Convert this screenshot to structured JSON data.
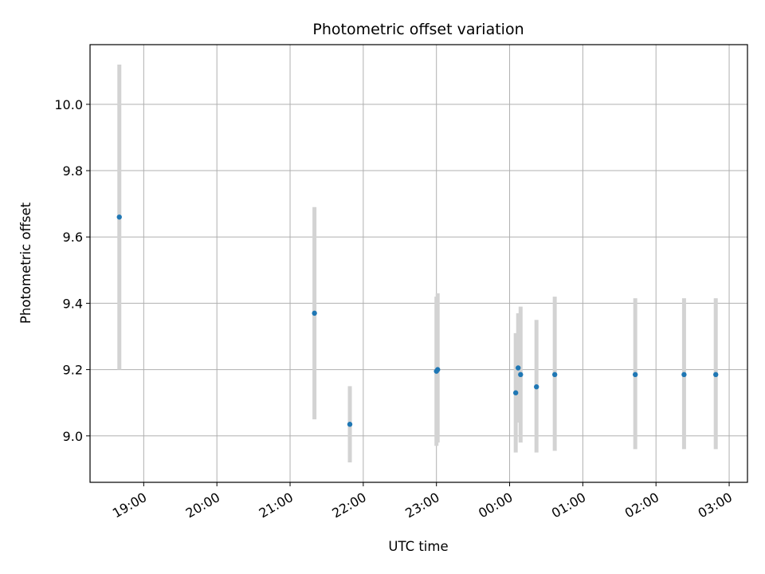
{
  "chart_data": {
    "type": "scatter",
    "title": "Photometric offset variation",
    "xlabel": "UTC time",
    "ylabel": "Photometric offset",
    "x_tick_labels": [
      "19:00",
      "20:00",
      "21:00",
      "22:00",
      "23:00",
      "00:00",
      "01:00",
      "02:00",
      "03:00"
    ],
    "y_ticks": [
      9.0,
      9.2,
      9.4,
      9.6,
      9.8,
      10.0
    ],
    "y_tick_labels": [
      "9.0",
      "9.2",
      "9.4",
      "9.6",
      "9.8",
      "10.0"
    ],
    "ylim": [
      8.86,
      10.18
    ],
    "xlim": [
      "18:16",
      "03:15"
    ],
    "grid": true,
    "points": [
      {
        "x": "18:40",
        "y": 9.66,
        "err_low": 9.2,
        "err_high": 10.12
      },
      {
        "x": "21:20",
        "y": 9.37,
        "err_low": 9.05,
        "err_high": 9.69
      },
      {
        "x": "21:49",
        "y": 9.035,
        "err_low": 8.92,
        "err_high": 9.15
      },
      {
        "x": "23:00",
        "y": 9.195,
        "err_low": 8.97,
        "err_high": 9.42
      },
      {
        "x": "23:01",
        "y": 9.2,
        "err_low": 8.98,
        "err_high": 9.43
      },
      {
        "x": "00:05",
        "y": 9.13,
        "err_low": 8.95,
        "err_high": 9.31
      },
      {
        "x": "00:07",
        "y": 9.205,
        "err_low": 9.04,
        "err_high": 9.37
      },
      {
        "x": "00:09",
        "y": 9.185,
        "err_low": 8.98,
        "err_high": 9.39
      },
      {
        "x": "00:22",
        "y": 9.148,
        "err_low": 8.95,
        "err_high": 9.35
      },
      {
        "x": "00:37",
        "y": 9.185,
        "err_low": 8.955,
        "err_high": 9.42
      },
      {
        "x": "01:43",
        "y": 9.185,
        "err_low": 8.96,
        "err_high": 9.415
      },
      {
        "x": "02:23",
        "y": 9.185,
        "err_low": 8.96,
        "err_high": 9.415
      },
      {
        "x": "02:49",
        "y": 9.185,
        "err_low": 8.96,
        "err_high": 9.415
      }
    ],
    "colors": {
      "point": "#1f77b4",
      "errorbar": "#d3d3d3",
      "grid": "#b0b0b0",
      "axes": "#000000"
    }
  }
}
